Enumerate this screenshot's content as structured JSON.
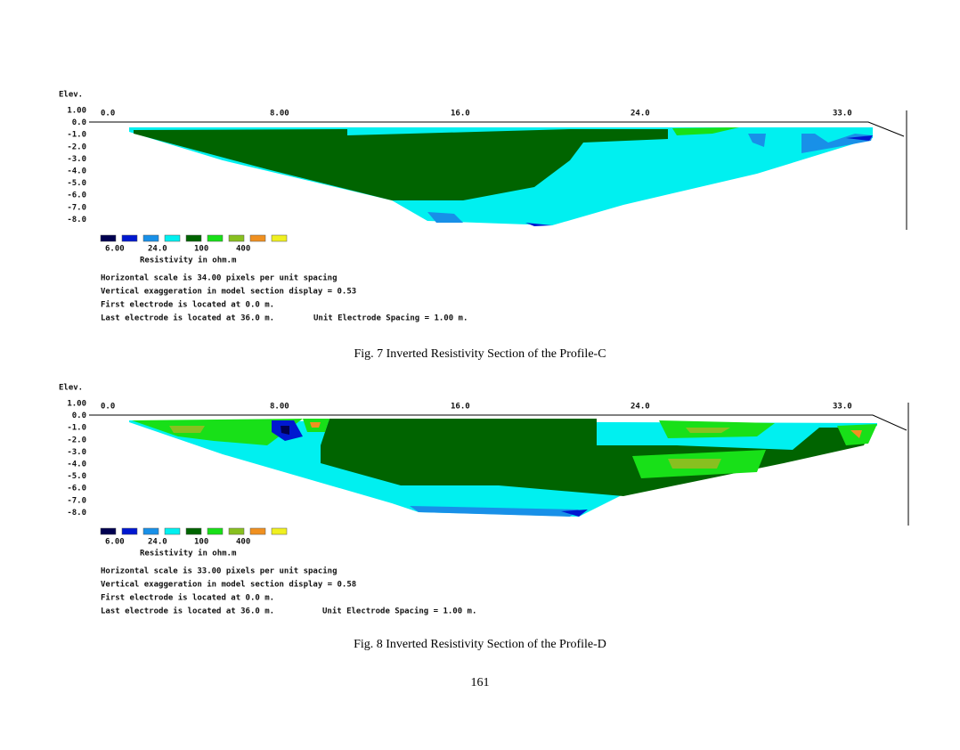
{
  "figures": [
    {
      "elev_label": "Elev.",
      "y_labels": [
        "1.00",
        "0.0",
        "-1.0",
        "-2.0",
        "-3.0",
        "-4.0",
        "-5.0",
        "-6.0",
        "-7.0",
        "-8.0"
      ],
      "x_labels": [
        "0.0",
        "8.00",
        "16.0",
        "24.0",
        "33.0"
      ],
      "legend_colors": [
        "#000050",
        "#0018d0",
        "#1890e8",
        "#00f0f0",
        "#006400",
        "#18e018",
        "#88c020",
        "#f09020",
        "#f0f020"
      ],
      "legend_labels": [
        "6.00",
        "24.0",
        "100",
        "400"
      ],
      "legend_title": "Resistivity in ohm.m",
      "notes": [
        "Horizontal scale is 34.00 pixels per unit spacing",
        "Vertical exaggeration in model section display = 0.53",
        "First electrode is located at 0.0  m.",
        "Last electrode is located at 36.0 m."
      ],
      "spacing_note": "Unit Electrode Spacing = 1.00 m.",
      "caption": "Fig. 7 Inverted Resistivity Section of the Profile-C"
    },
    {
      "elev_label": "Elev.",
      "y_labels": [
        "1.00",
        "0.0",
        "-1.0",
        "-2.0",
        "-3.0",
        "-4.0",
        "-5.0",
        "-6.0",
        "-7.0",
        "-8.0"
      ],
      "x_labels": [
        "0.0",
        "8.00",
        "16.0",
        "24.0",
        "33.0"
      ],
      "legend_colors": [
        "#000050",
        "#0018d0",
        "#1890e8",
        "#00f0f0",
        "#006400",
        "#18e018",
        "#88c020",
        "#f09020",
        "#f0f020"
      ],
      "legend_labels": [
        "6.00",
        "24.0",
        "100",
        "400"
      ],
      "legend_title": "Resistivity in ohm.m",
      "notes": [
        "Horizontal scale is 33.00 pixels per unit spacing",
        "Vertical exaggeration in model section display = 0.58",
        "First electrode is located at 0.0  m.",
        "Last electrode is located at 36.0 m."
      ],
      "spacing_note": "Unit Electrode Spacing = 1.00 m.",
      "caption": "Fig. 8 Inverted Resistivity Section of the Profile-D"
    }
  ],
  "page_number": "161"
}
